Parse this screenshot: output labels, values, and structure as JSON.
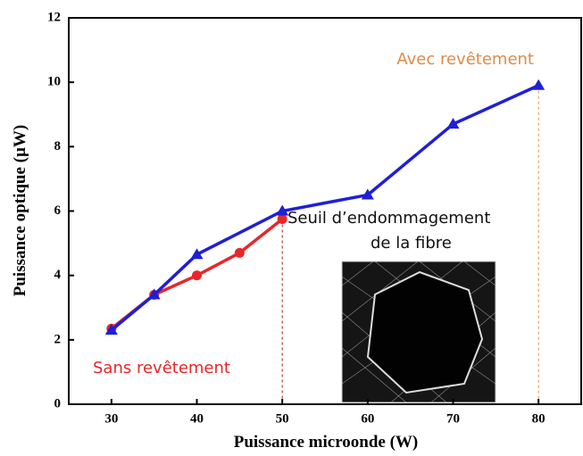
{
  "chart_data": {
    "type": "line",
    "x_label": "Puissance microonde (W)",
    "y_label": "Puissance optique (µW)",
    "xlim": [
      25,
      85
    ],
    "xticks": [
      30,
      40,
      50,
      60,
      70,
      80
    ],
    "ylim": [
      0,
      12
    ],
    "yticks": [
      0,
      2,
      4,
      6,
      8,
      10,
      12
    ],
    "series": [
      {
        "color": "#e8262a",
        "marker": "circle",
        "x": [
          30,
          35,
          40,
          45,
          50
        ],
        "values": [
          2.35,
          3.4,
          4.0,
          4.7,
          5.75
        ]
      },
      {
        "color": "#1f1fd6",
        "marker": "triangle",
        "x": [
          30,
          35,
          40,
          50,
          60,
          70,
          80
        ],
        "values": [
          2.3,
          3.4,
          4.65,
          6.0,
          6.5,
          8.7,
          9.9
        ]
      }
    ],
    "annotations": [
      {
        "text": "Avec revêtement",
        "color": "#e08a4a"
      },
      {
        "text": "Sans revêtement",
        "color": "#e8262a"
      },
      {
        "text": "Seuil d’endommagement",
        "color": "#111"
      },
      {
        "text": "de la fibre",
        "color": "#111"
      }
    ]
  }
}
